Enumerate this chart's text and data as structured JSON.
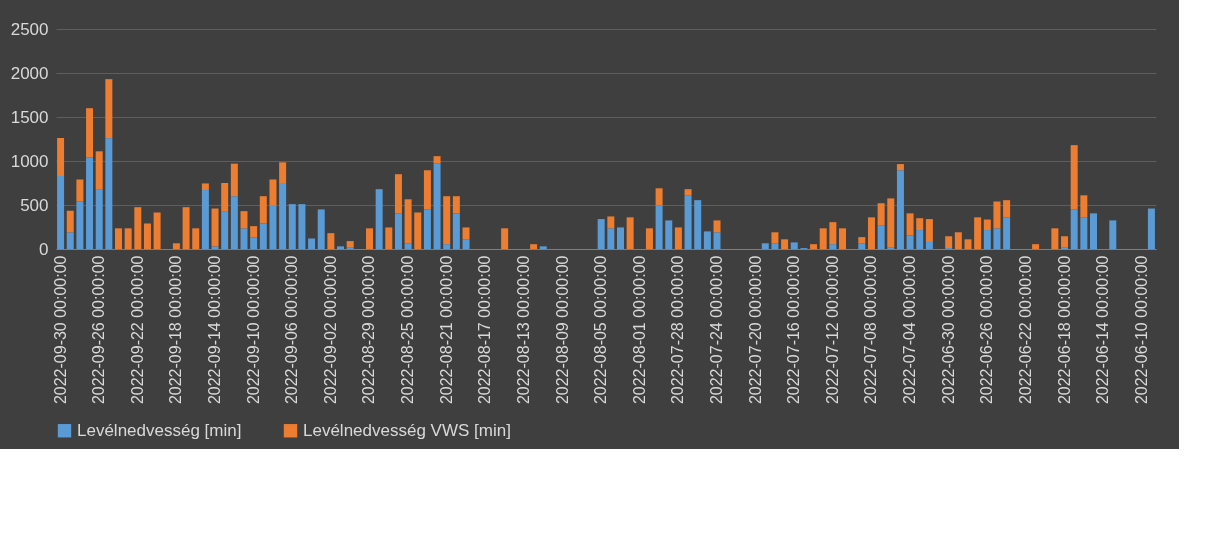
{
  "chart_data": {
    "type": "bar",
    "stacked": true,
    "grid": "y",
    "legend": "bottom",
    "ylim": [
      0,
      2500
    ],
    "yticks": [
      0,
      500,
      1000,
      1500,
      2000,
      2500
    ],
    "categories": [
      "2022-09-30 00:00:00",
      null,
      null,
      null,
      "2022-09-26 00:00:00",
      null,
      null,
      null,
      "2022-09-22 00:00:00",
      null,
      null,
      null,
      "2022-09-18 00:00:00",
      null,
      null,
      null,
      "2022-09-14 00:00:00",
      null,
      null,
      null,
      "2022-09-10 00:00:00",
      null,
      null,
      null,
      "2022-09-06 00:00:00",
      null,
      null,
      null,
      "2022-09-02 00:00:00",
      null,
      null,
      null,
      "2022-08-29 00:00:00",
      null,
      null,
      null,
      "2022-08-25 00:00:00",
      null,
      null,
      null,
      "2022-08-21 00:00:00",
      null,
      null,
      null,
      "2022-08-17 00:00:00",
      null,
      null,
      null,
      "2022-08-13 00:00:00",
      null,
      null,
      null,
      "2022-08-09 00:00:00",
      null,
      null,
      null,
      "2022-08-05 00:00:00",
      null,
      null,
      null,
      "2022-08-01 00:00:00",
      null,
      null,
      null,
      "2022-07-28 00:00:00",
      null,
      null,
      null,
      "2022-07-24 00:00:00",
      null,
      null,
      null,
      "2022-07-20 00:00:00",
      null,
      null,
      null,
      "2022-07-16 00:00:00",
      null,
      null,
      null,
      "2022-07-12 00:00:00",
      null,
      null,
      null,
      "2022-07-08 00:00:00",
      null,
      null,
      null,
      "2022-07-04 00:00:00",
      null,
      null,
      null,
      "2022-06-30 00:00:00",
      null,
      null,
      null,
      "2022-06-26 00:00:00",
      null,
      null,
      null,
      "2022-06-22 00:00:00",
      null,
      null,
      null,
      "2022-06-18 00:00:00",
      null,
      null,
      null,
      "2022-06-14 00:00:00",
      null,
      null,
      null,
      "2022-06-10 00:00:00",
      null
    ],
    "series": [
      {
        "name": "Levélnedvesség [min]",
        "color": "#5b9bd5",
        "values": [
          830,
          190,
          540,
          1040,
          680,
          1260,
          0,
          0,
          0,
          0,
          0,
          0,
          0,
          0,
          0,
          670,
          30,
          430,
          600,
          235,
          130,
          290,
          490,
          740,
          510,
          510,
          120,
          450,
          0,
          30,
          20,
          0,
          0,
          680,
          0,
          405,
          65,
          0,
          450,
          975,
          55,
          405,
          110,
          0,
          0,
          0,
          0,
          0,
          0,
          0,
          30,
          0,
          0,
          0,
          0,
          0,
          340,
          235,
          245,
          0,
          0,
          0,
          495,
          325,
          0,
          610,
          555,
          200,
          190,
          0,
          0,
          0,
          0,
          65,
          65,
          0,
          75,
          10,
          0,
          0,
          55,
          0,
          0,
          65,
          0,
          270,
          20,
          895,
          155,
          215,
          80,
          0,
          10,
          0,
          0,
          0,
          215,
          235,
          360,
          0,
          0,
          0,
          0,
          0,
          20,
          450,
          360,
          405,
          0,
          325,
          0,
          0,
          0,
          460
        ]
      },
      {
        "name": "Levélnedvesség VWS [min]",
        "color": "#ed7d31",
        "values": [
          430,
          245,
          250,
          560,
          430,
          670,
          235,
          235,
          475,
          290,
          415,
          0,
          65,
          475,
          235,
          75,
          430,
          320,
          370,
          195,
          130,
          310,
          300,
          245,
          0,
          0,
          0,
          0,
          180,
          0,
          70,
          0,
          235,
          0,
          245,
          445,
          500,
          415,
          445,
          80,
          545,
          195,
          135,
          0,
          0,
          0,
          235,
          0,
          0,
          55,
          0,
          0,
          0,
          0,
          0,
          0,
          0,
          135,
          0,
          360,
          0,
          235,
          195,
          0,
          245,
          70,
          0,
          0,
          135,
          0,
          0,
          0,
          0,
          0,
          125,
          110,
          0,
          0,
          55,
          235,
          250,
          235,
          0,
          70,
          360,
          250,
          555,
          70,
          250,
          135,
          260,
          0,
          135,
          190,
          110,
          360,
          120,
          305,
          195,
          0,
          0,
          55,
          0,
          235,
          125,
          730,
          250,
          0,
          0,
          0,
          0,
          0,
          0,
          0
        ]
      }
    ]
  }
}
